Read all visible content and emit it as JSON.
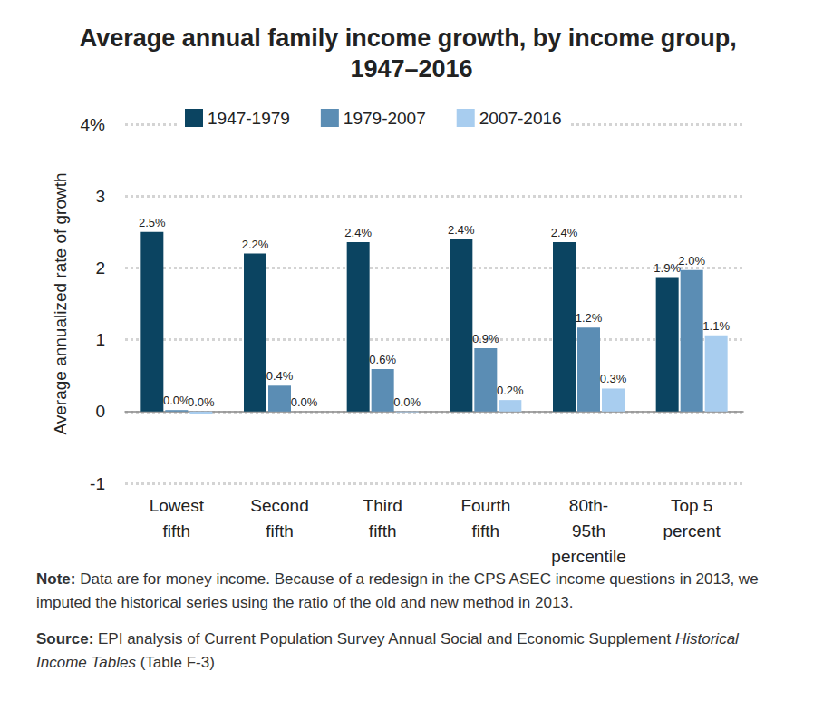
{
  "chart_data": {
    "type": "bar",
    "title": "Average annual family income growth, by income group, 1947–2016",
    "y_label": "Average annualized rate of growth",
    "categories": [
      "Lowest\nfifth",
      "Second\nfifth",
      "Third\nfifth",
      "Fourth\nfifth",
      "80th-\n95th\npercentile",
      "Top 5\npercent"
    ],
    "series": [
      {
        "name": "1947-1979",
        "color": "#0b4461",
        "values": [
          2.5,
          2.2,
          2.36,
          2.4,
          2.36,
          1.86
        ],
        "value_labels": [
          "2.5%",
          "2.2%",
          "2.4%",
          "2.4%",
          "2.4%",
          "1.9%"
        ]
      },
      {
        "name": "1979-2007",
        "color": "#5b8db4",
        "values": [
          0.02,
          0.36,
          0.59,
          0.88,
          1.17,
          1.97
        ],
        "value_labels": [
          "0.0%",
          "0.4%",
          "0.6%",
          "0.9%",
          "1.2%",
          "2.0%"
        ]
      },
      {
        "name": "2007-2016",
        "color": "#a8cdef",
        "values": [
          -0.03,
          0.0,
          -0.01,
          0.16,
          0.32,
          1.06
        ],
        "value_labels": [
          "0.0%",
          "0.0%",
          "0.0%",
          "0.2%",
          "0.3%",
          "1.1%"
        ]
      }
    ],
    "ylim": [
      -1,
      4
    ],
    "yticks": [
      -1,
      0,
      1,
      2,
      3,
      {
        "value": 4,
        "label": "4%"
      }
    ],
    "grid": true,
    "legend": "top",
    "data_labels": true,
    "note": [
      "Note:",
      "Data are for money income. Because of a redesign in the CPS ASEC income questions in 2013, we imputed the historical series using the ratio of the old and new method in 2013."
    ],
    "source": [
      "Source:",
      "EPI analysis of Current Population Survey Annual Social and Economic Supplement",
      "Historical Income Tables",
      "(Table F-3)"
    ]
  }
}
